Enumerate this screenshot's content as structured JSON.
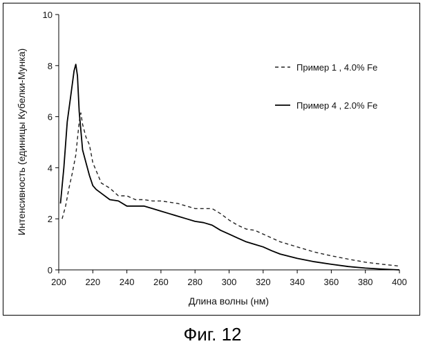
{
  "caption": "Фиг. 12",
  "chart_data": {
    "type": "line",
    "title": "",
    "xlabel": "Длина волны (нм)",
    "ylabel": "Интенсивность (единицы Кубелки-Мунка)",
    "xlim": [
      200,
      400
    ],
    "ylim": [
      0,
      10
    ],
    "x_ticks": [
      200,
      220,
      240,
      260,
      280,
      300,
      320,
      340,
      360,
      380,
      400
    ],
    "y_ticks": [
      0,
      2,
      4,
      6,
      8,
      10
    ],
    "grid": false,
    "legend_position": "top-right",
    "series": [
      {
        "name": "Пример 1 , 4.0% Fe",
        "style": "dashed",
        "color": "#222222",
        "x": [
          202,
          204,
          206,
          208,
          210,
          212,
          213,
          214,
          216,
          218,
          220,
          225,
          230,
          235,
          240,
          245,
          250,
          255,
          260,
          265,
          270,
          275,
          280,
          285,
          290,
          295,
          300,
          305,
          310,
          315,
          320,
          325,
          330,
          340,
          350,
          360,
          370,
          380,
          390,
          400
        ],
        "y": [
          2.0,
          2.5,
          3.2,
          3.8,
          4.5,
          5.8,
          6.15,
          5.7,
          5.2,
          4.9,
          4.2,
          3.4,
          3.2,
          2.9,
          2.9,
          2.75,
          2.75,
          2.7,
          2.7,
          2.65,
          2.6,
          2.5,
          2.4,
          2.4,
          2.4,
          2.2,
          1.95,
          1.75,
          1.6,
          1.55,
          1.4,
          1.25,
          1.1,
          0.9,
          0.7,
          0.55,
          0.42,
          0.3,
          0.22,
          0.15
        ]
      },
      {
        "name": "Пример 4 , 2.0% Fe",
        "style": "solid",
        "color": "#000000",
        "x": [
          201,
          203,
          205,
          207,
          209,
          210,
          211,
          212,
          214,
          216,
          218,
          220,
          222,
          225,
          230,
          235,
          240,
          245,
          250,
          255,
          260,
          265,
          270,
          275,
          280,
          285,
          290,
          295,
          300,
          305,
          310,
          315,
          320,
          325,
          330,
          340,
          350,
          360,
          370,
          380,
          390,
          400
        ],
        "y": [
          2.6,
          4.0,
          5.8,
          6.8,
          7.8,
          8.05,
          7.6,
          6.2,
          4.7,
          4.2,
          3.7,
          3.3,
          3.15,
          3.0,
          2.75,
          2.7,
          2.5,
          2.5,
          2.5,
          2.4,
          2.3,
          2.2,
          2.1,
          2.0,
          1.9,
          1.85,
          1.75,
          1.55,
          1.4,
          1.25,
          1.1,
          1.0,
          0.9,
          0.75,
          0.62,
          0.45,
          0.32,
          0.22,
          0.13,
          0.07,
          0.03,
          0.0
        ]
      }
    ]
  }
}
